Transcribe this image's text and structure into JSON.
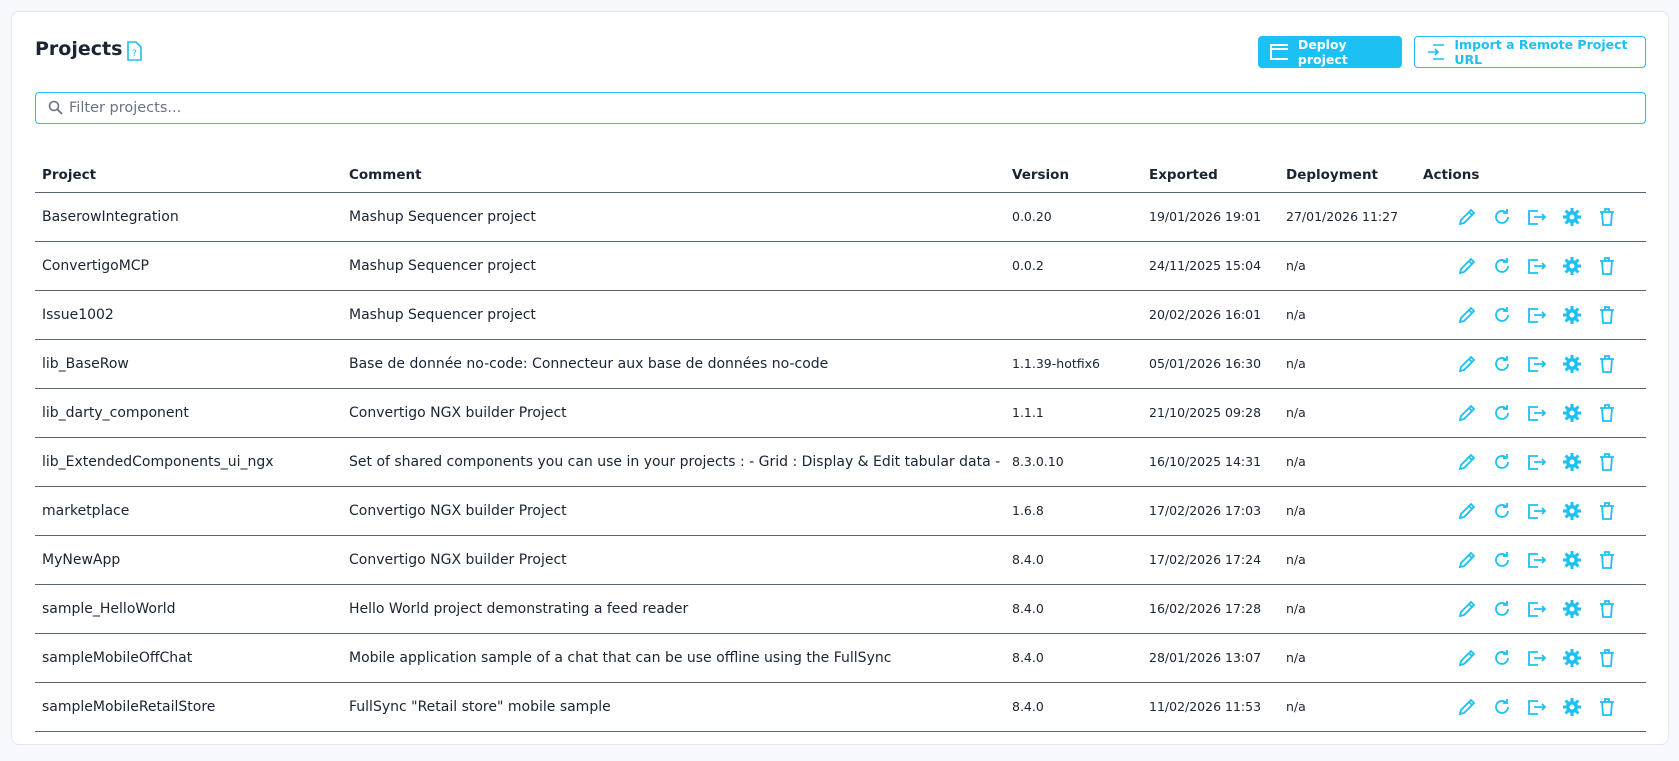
{
  "header": {
    "title": "Projects",
    "buttons": [
      "Deploy project",
      "Import a Remote Project URL"
    ]
  },
  "search": {
    "placeholder": "Filter projects..."
  },
  "table": {
    "columns": [
      "Project",
      "Comment",
      "Version",
      "Exported",
      "Deployment",
      "Actions"
    ],
    "rows": [
      [
        "BaserowIntegration",
        "Mashup Sequencer project",
        "0.0.20",
        "19/01/2026 19:01",
        "27/01/2026 11:27"
      ],
      [
        "ConvertigoMCP",
        "Mashup Sequencer project",
        "0.0.2",
        "24/11/2025 15:04",
        "n/a"
      ],
      [
        "Issue1002",
        "Mashup Sequencer project",
        null,
        "20/02/2026 16:01",
        "n/a"
      ],
      [
        "lib_BaseRow",
        "Base de donnée no-code: Connecteur aux base de données no-code",
        "1.1.39-hotfix6",
        "05/01/2026 16:30",
        "n/a"
      ],
      [
        "lib_darty_component",
        "Convertigo NGX builder Project",
        "1.1.1",
        "21/10/2025 09:28",
        "n/a"
      ],
      [
        "lib_ExtendedComponents_ui_ngx",
        "Set of shared components you can use in your projects : - Grid : Display & Edit tabular data - Chip...",
        "8.3.0.10",
        "16/10/2025 14:31",
        "n/a"
      ],
      [
        "marketplace",
        "Convertigo NGX builder Project",
        "1.6.8",
        "17/02/2026 17:03",
        "n/a"
      ],
      [
        "MyNewApp",
        "Convertigo NGX builder Project",
        "8.4.0",
        "17/02/2026 17:24",
        "n/a"
      ],
      [
        "sample_HelloWorld",
        "Hello World project demonstrating a feed reader",
        "8.4.0",
        "16/02/2026 17:28",
        "n/a"
      ],
      [
        "sampleMobileOffChat",
        "Mobile application sample of a chat that can be use offline using the FullSync",
        "8.4.0",
        "28/01/2026 13:07",
        "n/a"
      ],
      [
        "sampleMobileRetailStore",
        "FullSync \"Retail store\" mobile sample",
        "8.4.0",
        "11/02/2026 11:53",
        "n/a"
      ]
    ]
  }
}
